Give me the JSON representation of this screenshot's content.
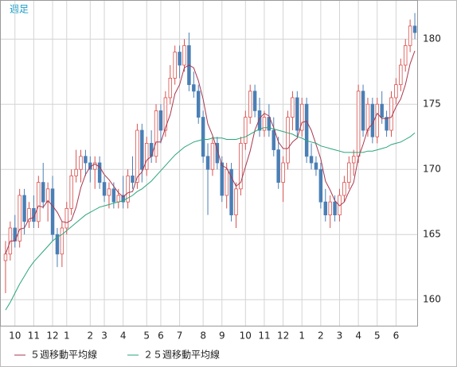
{
  "chart_data": {
    "type": "candlestick",
    "title": "週足",
    "categories": [
      null,
      null,
      "10",
      null,
      null,
      null,
      "11",
      null,
      null,
      null,
      "12",
      null,
      null,
      "1",
      null,
      null,
      null,
      null,
      "2",
      null,
      null,
      "3",
      null,
      null,
      null,
      "4",
      null,
      null,
      null,
      null,
      "5",
      null,
      null,
      "6",
      null,
      null,
      null,
      "7",
      null,
      null,
      null,
      null,
      "8",
      null,
      null,
      null,
      "9",
      null,
      null,
      null,
      null,
      "10",
      null,
      null,
      null,
      "11",
      null,
      null,
      null,
      "12",
      null,
      null,
      null,
      "1",
      null,
      null,
      null,
      "2",
      null,
      null,
      null,
      "3",
      null,
      null,
      null,
      "4",
      null,
      null,
      null,
      "5",
      null,
      null,
      null,
      "6",
      null,
      null,
      null,
      null
    ],
    "candles": {
      "up_color": "#d9534f",
      "down_color": "#4a7fb5",
      "open": [
        163.0,
        163.5,
        165.5,
        164.5,
        168.0,
        166.0,
        167.0,
        166.0,
        169.0,
        167.5,
        168.5,
        165.0,
        163.5,
        165.5,
        167.0,
        169.5,
        170.0,
        171.0,
        170.5,
        170.0,
        170.5,
        169.0,
        168.0,
        168.5,
        167.5,
        168.0,
        167.5,
        169.5,
        169.0,
        173.0,
        170.0,
        172.0,
        171.0,
        174.5,
        173.0,
        175.5,
        177.0,
        179.0,
        178.0,
        179.5,
        176.5,
        176.0,
        174.0,
        171.0,
        170.0,
        172.0,
        170.5,
        168.0,
        170.0,
        166.5,
        168.5,
        172.0,
        174.0,
        176.0,
        174.5,
        173.0,
        174.0,
        173.0,
        171.5,
        169.0,
        170.5,
        174.0,
        175.5,
        173.0,
        175.0,
        171.0,
        170.5,
        170.0,
        167.5,
        166.5,
        167.5,
        166.5,
        168.0,
        169.0,
        170.5,
        171.0,
        176.0,
        173.0,
        175.0,
        172.5,
        175.0,
        174.0,
        173.0,
        175.5,
        176.5,
        178.0,
        179.5,
        181.0
      ],
      "high": [
        164.5,
        166.0,
        166.5,
        168.5,
        168.5,
        167.5,
        168.0,
        169.5,
        170.5,
        169.0,
        169.5,
        165.5,
        166.0,
        167.5,
        170.0,
        171.5,
        171.5,
        171.5,
        171.0,
        171.0,
        171.0,
        169.5,
        169.0,
        169.0,
        168.5,
        169.5,
        170.0,
        171.0,
        173.5,
        173.5,
        172.5,
        173.0,
        175.0,
        175.0,
        176.0,
        178.0,
        179.5,
        179.5,
        180.0,
        180.5,
        177.5,
        176.5,
        174.5,
        172.0,
        172.5,
        172.5,
        171.0,
        170.5,
        170.5,
        169.0,
        172.5,
        174.5,
        176.5,
        176.5,
        175.5,
        174.5,
        175.0,
        174.0,
        172.5,
        171.0,
        174.5,
        176.0,
        176.0,
        175.5,
        175.5,
        172.0,
        171.0,
        170.5,
        168.5,
        168.0,
        168.0,
        168.5,
        169.5,
        171.0,
        171.5,
        176.5,
        176.5,
        175.5,
        175.5,
        175.5,
        176.0,
        174.5,
        176.0,
        177.0,
        178.5,
        180.0,
        181.5,
        182.0
      ],
      "low": [
        160.5,
        163.0,
        164.0,
        164.0,
        165.0,
        165.5,
        165.5,
        165.5,
        167.0,
        166.0,
        164.5,
        162.5,
        162.5,
        165.0,
        166.5,
        169.0,
        169.0,
        169.5,
        169.0,
        168.5,
        168.5,
        167.5,
        167.0,
        167.0,
        167.0,
        167.0,
        167.0,
        168.5,
        168.5,
        169.0,
        169.5,
        170.5,
        170.5,
        172.0,
        172.5,
        175.0,
        176.5,
        177.0,
        177.5,
        176.0,
        175.5,
        173.5,
        170.5,
        166.5,
        169.5,
        170.0,
        167.5,
        167.0,
        166.0,
        165.5,
        168.0,
        171.5,
        173.5,
        174.0,
        172.5,
        172.5,
        172.5,
        171.0,
        168.5,
        167.5,
        170.0,
        173.0,
        172.5,
        172.5,
        170.5,
        170.0,
        169.5,
        167.0,
        166.0,
        165.5,
        166.0,
        166.0,
        167.5,
        168.5,
        169.5,
        170.5,
        172.5,
        172.5,
        172.0,
        172.0,
        173.5,
        172.5,
        172.5,
        175.0,
        176.0,
        177.5,
        179.0,
        180.0
      ],
      "close": [
        163.5,
        165.5,
        164.5,
        168.0,
        166.0,
        167.0,
        166.0,
        169.0,
        167.5,
        168.5,
        165.0,
        163.5,
        165.5,
        167.0,
        169.5,
        170.0,
        171.0,
        170.5,
        170.0,
        170.5,
        169.0,
        168.0,
        168.5,
        167.5,
        168.0,
        167.5,
        169.5,
        169.0,
        173.0,
        170.0,
        172.0,
        171.0,
        174.5,
        173.0,
        175.5,
        177.0,
        179.0,
        178.0,
        179.5,
        176.5,
        176.0,
        174.0,
        171.0,
        170.0,
        172.0,
        170.5,
        168.0,
        170.0,
        166.5,
        168.5,
        172.0,
        174.0,
        176.0,
        174.5,
        173.0,
        174.0,
        173.0,
        171.5,
        169.0,
        170.5,
        174.0,
        175.5,
        173.0,
        175.0,
        171.0,
        170.5,
        170.0,
        167.5,
        166.5,
        167.5,
        166.5,
        168.0,
        169.0,
        170.5,
        171.0,
        176.0,
        173.0,
        175.0,
        172.5,
        175.0,
        174.0,
        173.0,
        175.5,
        176.5,
        178.0,
        179.5,
        181.0,
        180.5
      ]
    },
    "series": [
      {
        "name": "５週移動平均線",
        "color": "#a8374f",
        "values": [
          163.5,
          164.5,
          164.5,
          165.4,
          165.5,
          166.2,
          166.3,
          167.2,
          167.1,
          167.6,
          167.2,
          166.7,
          166.0,
          165.9,
          166.1,
          167.1,
          168.6,
          169.6,
          170.2,
          170.4,
          170.2,
          169.6,
          169.2,
          168.7,
          168.2,
          167.9,
          168.2,
          168.3,
          169.4,
          169.8,
          170.7,
          171.0,
          172.1,
          172.1,
          173.2,
          174.2,
          175.8,
          176.5,
          177.8,
          178.0,
          177.8,
          176.8,
          175.4,
          173.5,
          172.6,
          171.5,
          170.3,
          170.1,
          169.4,
          168.7,
          169.0,
          170.2,
          171.4,
          173.0,
          173.9,
          174.3,
          174.1,
          173.2,
          172.1,
          171.6,
          171.6,
          172.1,
          172.4,
          173.6,
          173.7,
          173.0,
          171.9,
          170.8,
          169.1,
          168.4,
          167.6,
          167.2,
          167.5,
          168.3,
          169.0,
          170.9,
          171.9,
          173.1,
          173.5,
          174.3,
          173.9,
          173.9,
          174.0,
          174.8,
          175.4,
          176.5,
          178.1,
          179.1
        ]
      },
      {
        "name": "２５週移動平均線",
        "color": "#2aa57a",
        "values": [
          159.2,
          159.8,
          160.5,
          161.2,
          161.8,
          162.4,
          162.9,
          163.3,
          163.7,
          164.1,
          164.5,
          164.8,
          165.0,
          165.3,
          165.6,
          165.9,
          166.2,
          166.5,
          166.7,
          166.9,
          167.1,
          167.2,
          167.3,
          167.4,
          167.5,
          167.6,
          167.8,
          168.0,
          168.3,
          168.5,
          168.8,
          169.1,
          169.5,
          169.9,
          170.3,
          170.7,
          171.1,
          171.4,
          171.7,
          171.9,
          172.1,
          172.2,
          172.3,
          172.3,
          172.4,
          172.4,
          172.4,
          172.3,
          172.3,
          172.3,
          172.4,
          172.5,
          172.7,
          172.9,
          173.1,
          173.2,
          173.2,
          173.1,
          173.0,
          172.9,
          172.8,
          172.7,
          172.5,
          172.4,
          172.2,
          172.1,
          172.0,
          171.8,
          171.7,
          171.6,
          171.5,
          171.4,
          171.3,
          171.3,
          171.3,
          171.3,
          171.3,
          171.4,
          171.4,
          171.5,
          171.6,
          171.7,
          171.9,
          172.0,
          172.1,
          172.3,
          172.5,
          172.8
        ]
      }
    ],
    "ylim": [
      158,
      183
    ],
    "yticks": [
      160,
      165,
      170,
      175,
      180
    ],
    "grid": true
  }
}
